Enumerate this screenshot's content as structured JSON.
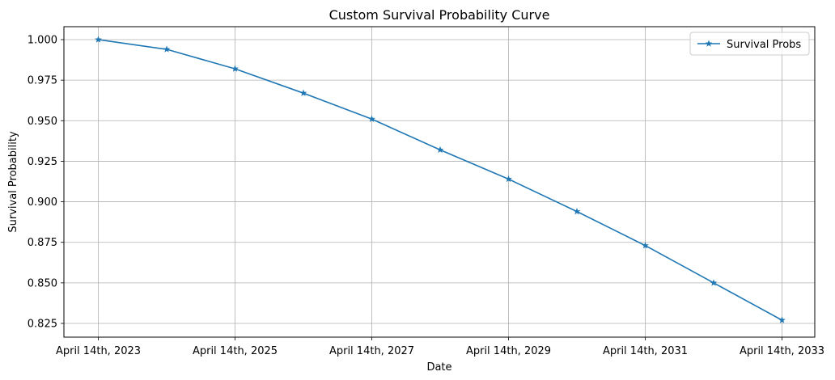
{
  "chart_data": {
    "type": "line",
    "title": "Custom Survival Probability Curve",
    "xlabel": "Date",
    "ylabel": "Survival Probability",
    "x": [
      2023,
      2024,
      2025,
      2026,
      2027,
      2028,
      2029,
      2030,
      2031,
      2032,
      2033
    ],
    "x_ticks": [
      {
        "value": 2023,
        "label": "April 14th, 2023"
      },
      {
        "value": 2025,
        "label": "April 14th, 2025"
      },
      {
        "value": 2027,
        "label": "April 14th, 2027"
      },
      {
        "value": 2029,
        "label": "April 14th, 2029"
      },
      {
        "value": 2031,
        "label": "April 14th, 2031"
      },
      {
        "value": 2033,
        "label": "April 14th, 2033"
      }
    ],
    "xlim": [
      2023,
      2033
    ],
    "ylim": [
      0.825,
      1.0
    ],
    "y_ticks": [
      0.825,
      0.85,
      0.875,
      0.9,
      0.925,
      0.95,
      0.975,
      1.0
    ],
    "y_tick_labels": [
      "0.825",
      "0.850",
      "0.875",
      "0.900",
      "0.925",
      "0.950",
      "0.975",
      "1.000"
    ],
    "grid": true,
    "legend_position": "top-right",
    "series": [
      {
        "name": "Survival Probs",
        "color": "#1f77b4",
        "marker": "star",
        "values": [
          1.0,
          0.994,
          0.982,
          0.967,
          0.951,
          0.932,
          0.914,
          0.894,
          0.873,
          0.85,
          0.827
        ]
      }
    ]
  }
}
